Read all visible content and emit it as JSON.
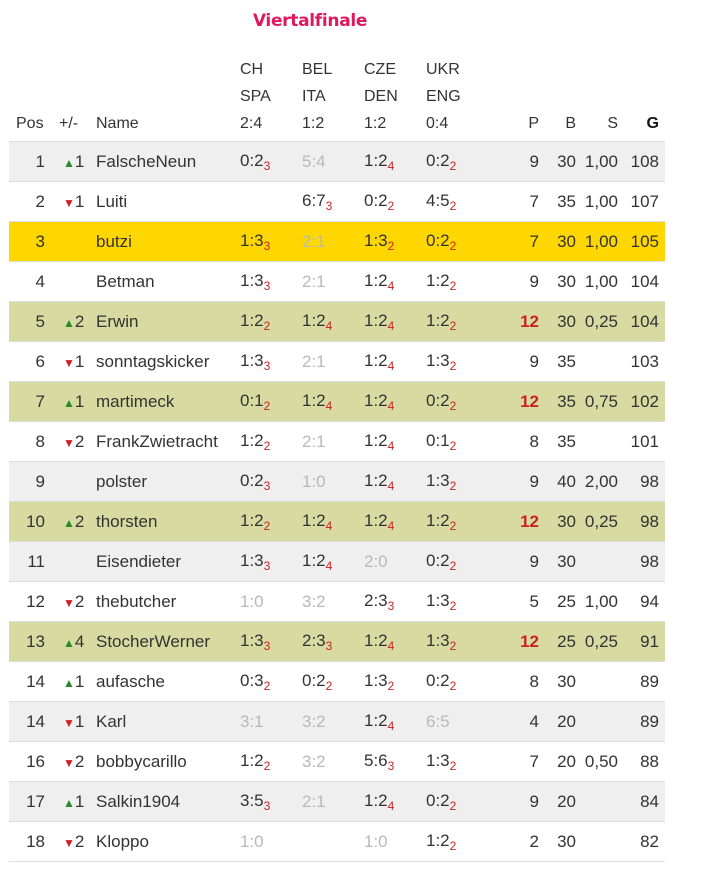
{
  "title": "Viertalfinale",
  "headers": {
    "pos": "Pos",
    "change": "+/-",
    "name": "Name",
    "matches": [
      {
        "line1": "CH",
        "line2": "SPA",
        "result": "2:4"
      },
      {
        "line1": "BEL",
        "line2": "ITA",
        "result": "1:2"
      },
      {
        "line1": "CZE",
        "line2": "DEN",
        "result": "1:2"
      },
      {
        "line1": "UKR",
        "line2": "ENG",
        "result": "0:4"
      }
    ],
    "p": "P",
    "b": "B",
    "s": "S",
    "g": "G"
  },
  "colors": {
    "title": "#e0195f",
    "up": "#2a8a2a",
    "down": "#cc2222",
    "self_row": "#ffd700",
    "top_row": "#d8dba1",
    "alt_row": "#efefef",
    "missed_tip": "#b9b9b9"
  },
  "rows": [
    {
      "pos": "1",
      "dir": "up",
      "change": "1",
      "name": "FalscheNeun",
      "style": "alt",
      "tips": [
        {
          "t": "0:2",
          "p": "3"
        },
        {
          "t": "5:4",
          "miss": true
        },
        {
          "t": "1:2",
          "p": "4"
        },
        {
          "t": "0:2",
          "p": "2"
        }
      ],
      "p": "9",
      "b": "30",
      "s": "1,00",
      "g": "108"
    },
    {
      "pos": "2",
      "dir": "down",
      "change": "1",
      "name": "Luiti",
      "style": "",
      "tips": [
        {
          "t": ""
        },
        {
          "t": "6:7",
          "p": "3"
        },
        {
          "t": "0:2",
          "p": "2"
        },
        {
          "t": "4:5",
          "p": "2"
        }
      ],
      "p": "7",
      "b": "35",
      "s": "1,00",
      "g": "107"
    },
    {
      "pos": "3",
      "dir": "",
      "change": "",
      "name": "butzi",
      "style": "self",
      "tips": [
        {
          "t": "1:3",
          "p": "3"
        },
        {
          "t": "2:1",
          "miss": true
        },
        {
          "t": "1:3",
          "p": "2"
        },
        {
          "t": "0:2",
          "p": "2"
        }
      ],
      "p": "7",
      "b": "30",
      "s": "1,00",
      "g": "105"
    },
    {
      "pos": "4",
      "dir": "",
      "change": "",
      "name": "Betman",
      "style": "",
      "tips": [
        {
          "t": "1:3",
          "p": "3"
        },
        {
          "t": "2:1",
          "miss": true
        },
        {
          "t": "1:2",
          "p": "4"
        },
        {
          "t": "1:2",
          "p": "2"
        }
      ],
      "p": "9",
      "b": "30",
      "s": "1,00",
      "g": "104"
    },
    {
      "pos": "5",
      "dir": "up",
      "change": "2",
      "name": "Erwin",
      "style": "top",
      "tips": [
        {
          "t": "1:2",
          "p": "2"
        },
        {
          "t": "1:2",
          "p": "4"
        },
        {
          "t": "1:2",
          "p": "4"
        },
        {
          "t": "1:2",
          "p": "2"
        }
      ],
      "p": "12",
      "p_hi": true,
      "b": "30",
      "s": "0,25",
      "g": "104"
    },
    {
      "pos": "6",
      "dir": "down",
      "change": "1",
      "name": "sonntagskicker",
      "style": "",
      "tips": [
        {
          "t": "1:3",
          "p": "3"
        },
        {
          "t": "2:1",
          "miss": true
        },
        {
          "t": "1:2",
          "p": "4"
        },
        {
          "t": "1:3",
          "p": "2"
        }
      ],
      "p": "9",
      "b": "35",
      "s": "",
      "g": "103"
    },
    {
      "pos": "7",
      "dir": "up",
      "change": "1",
      "name": "martimeck",
      "style": "top",
      "tips": [
        {
          "t": "0:1",
          "p": "2"
        },
        {
          "t": "1:2",
          "p": "4"
        },
        {
          "t": "1:2",
          "p": "4"
        },
        {
          "t": "0:2",
          "p": "2"
        }
      ],
      "p": "12",
      "p_hi": true,
      "b": "35",
      "s": "0,75",
      "g": "102"
    },
    {
      "pos": "8",
      "dir": "down",
      "change": "2",
      "name": "FrankZwietracht",
      "style": "",
      "tips": [
        {
          "t": "1:2",
          "p": "2"
        },
        {
          "t": "2:1",
          "miss": true
        },
        {
          "t": "1:2",
          "p": "4"
        },
        {
          "t": "0:1",
          "p": "2"
        }
      ],
      "p": "8",
      "b": "35",
      "s": "",
      "g": "101"
    },
    {
      "pos": "9",
      "dir": "",
      "change": "",
      "name": "polster",
      "style": "alt",
      "tips": [
        {
          "t": "0:2",
          "p": "3"
        },
        {
          "t": "1:0",
          "miss": true
        },
        {
          "t": "1:2",
          "p": "4"
        },
        {
          "t": "1:3",
          "p": "2"
        }
      ],
      "p": "9",
      "b": "40",
      "s": "2,00",
      "g": "98"
    },
    {
      "pos": "10",
      "dir": "up",
      "change": "2",
      "name": "thorsten",
      "style": "top",
      "tips": [
        {
          "t": "1:2",
          "p": "2"
        },
        {
          "t": "1:2",
          "p": "4"
        },
        {
          "t": "1:2",
          "p": "4"
        },
        {
          "t": "1:2",
          "p": "2"
        }
      ],
      "p": "12",
      "p_hi": true,
      "b": "30",
      "s": "0,25",
      "g": "98"
    },
    {
      "pos": "11",
      "dir": "",
      "change": "",
      "name": "Eisendieter",
      "style": "alt",
      "tips": [
        {
          "t": "1:3",
          "p": "3"
        },
        {
          "t": "1:2",
          "p": "4"
        },
        {
          "t": "2:0",
          "miss": true
        },
        {
          "t": "0:2",
          "p": "2"
        }
      ],
      "p": "9",
      "b": "30",
      "s": "",
      "g": "98"
    },
    {
      "pos": "12",
      "dir": "down",
      "change": "2",
      "name": "thebutcher",
      "style": "",
      "tips": [
        {
          "t": "1:0",
          "miss": true
        },
        {
          "t": "3:2",
          "miss": true
        },
        {
          "t": "2:3",
          "p": "3"
        },
        {
          "t": "1:3",
          "p": "2"
        }
      ],
      "p": "5",
      "b": "25",
      "s": "1,00",
      "g": "94"
    },
    {
      "pos": "13",
      "dir": "up",
      "change": "4",
      "name": "StocherWerner",
      "style": "top",
      "tips": [
        {
          "t": "1:3",
          "p": "3"
        },
        {
          "t": "2:3",
          "p": "3"
        },
        {
          "t": "1:2",
          "p": "4"
        },
        {
          "t": "1:3",
          "p": "2"
        }
      ],
      "p": "12",
      "p_hi": true,
      "b": "25",
      "s": "0,25",
      "g": "91"
    },
    {
      "pos": "14",
      "dir": "up",
      "change": "1",
      "name": "aufasche",
      "style": "",
      "tips": [
        {
          "t": "0:3",
          "p": "2"
        },
        {
          "t": "0:2",
          "p": "2"
        },
        {
          "t": "1:3",
          "p": "2"
        },
        {
          "t": "0:2",
          "p": "2"
        }
      ],
      "p": "8",
      "b": "30",
      "s": "",
      "g": "89"
    },
    {
      "pos": "14",
      "dir": "down",
      "change": "1",
      "name": "Karl",
      "style": "alt",
      "tips": [
        {
          "t": "3:1",
          "miss": true
        },
        {
          "t": "3:2",
          "miss": true
        },
        {
          "t": "1:2",
          "p": "4"
        },
        {
          "t": "6:5",
          "miss": true
        }
      ],
      "p": "4",
      "b": "20",
      "s": "",
      "g": "89"
    },
    {
      "pos": "16",
      "dir": "down",
      "change": "2",
      "name": "bobbycarillo",
      "style": "",
      "tips": [
        {
          "t": "1:2",
          "p": "2"
        },
        {
          "t": "3:2",
          "miss": true
        },
        {
          "t": "5:6",
          "p": "3"
        },
        {
          "t": "1:3",
          "p": "2"
        }
      ],
      "p": "7",
      "b": "20",
      "s": "0,50",
      "g": "88"
    },
    {
      "pos": "17",
      "dir": "up",
      "change": "1",
      "name": "Salkin1904",
      "style": "alt",
      "tips": [
        {
          "t": "3:5",
          "p": "3"
        },
        {
          "t": "2:1",
          "miss": true
        },
        {
          "t": "1:2",
          "p": "4"
        },
        {
          "t": "0:2",
          "p": "2"
        }
      ],
      "p": "9",
      "b": "20",
      "s": "",
      "g": "84"
    },
    {
      "pos": "18",
      "dir": "down",
      "change": "2",
      "name": "Kloppo",
      "style": "",
      "tips": [
        {
          "t": "1:0",
          "miss": true
        },
        {
          "t": ""
        },
        {
          "t": "1:0",
          "miss": true
        },
        {
          "t": "1:2",
          "p": "2"
        }
      ],
      "p": "2",
      "b": "30",
      "s": "",
      "g": "82"
    }
  ]
}
